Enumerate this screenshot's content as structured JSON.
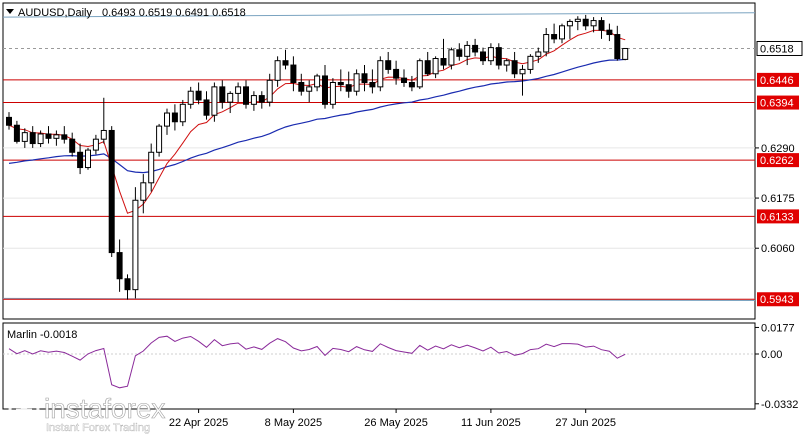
{
  "chart_data": {
    "type": "candlestick",
    "symbol": "AUDUSD,Daily",
    "ohlc_label": "0.6493 0.6519 0.6491 0.6518",
    "current_price": "0.6518",
    "y_ticks": [
      "0.6290",
      "0.6175",
      "0.6060",
      "0.5943"
    ],
    "date_ticks": [
      "22 Apr 2025",
      "8 May 2025",
      "26 May 2025",
      "11 Jun 2025",
      "27 Jun 2025"
    ],
    "ylim": [
      0.59,
      0.662
    ],
    "levels": [
      {
        "label": "0.6446",
        "value": 0.6446
      },
      {
        "label": "0.6394",
        "value": 0.6394
      },
      {
        "label": "0.6262",
        "value": 0.6262
      },
      {
        "label": "0.6133",
        "value": 0.6133
      },
      {
        "label": "0.5943",
        "value": 0.5943
      }
    ],
    "candles": [
      [
        0.636,
        0.6372,
        0.6332,
        0.6342
      ],
      [
        0.6342,
        0.6352,
        0.63,
        0.6305
      ],
      [
        0.6305,
        0.6335,
        0.629,
        0.6325
      ],
      [
        0.6325,
        0.634,
        0.629,
        0.63
      ],
      [
        0.63,
        0.633,
        0.6292,
        0.6322
      ],
      [
        0.6322,
        0.634,
        0.63,
        0.6312
      ],
      [
        0.6312,
        0.633,
        0.6295,
        0.632
      ],
      [
        0.632,
        0.634,
        0.63,
        0.631
      ],
      [
        0.631,
        0.6325,
        0.627,
        0.628
      ],
      [
        0.628,
        0.63,
        0.623,
        0.6245
      ],
      [
        0.6245,
        0.629,
        0.624,
        0.6285
      ],
      [
        0.6285,
        0.632,
        0.6275,
        0.631
      ],
      [
        0.631,
        0.6405,
        0.63,
        0.633
      ],
      [
        0.633,
        0.634,
        0.604,
        0.605
      ],
      [
        0.605,
        0.608,
        0.596,
        0.599
      ],
      [
        0.599,
        0.6,
        0.5942,
        0.5965
      ],
      [
        0.5965,
        0.62,
        0.5945,
        0.617
      ],
      [
        0.617,
        0.623,
        0.614,
        0.621
      ],
      [
        0.621,
        0.63,
        0.619,
        0.628
      ],
      [
        0.628,
        0.6345,
        0.627,
        0.634
      ],
      [
        0.634,
        0.638,
        0.632,
        0.637
      ],
      [
        0.637,
        0.639,
        0.633,
        0.635
      ],
      [
        0.635,
        0.64,
        0.634,
        0.639
      ],
      [
        0.639,
        0.643,
        0.638,
        0.642
      ],
      [
        0.642,
        0.644,
        0.639,
        0.64
      ],
      [
        0.64,
        0.642,
        0.6355,
        0.6365
      ],
      [
        0.6365,
        0.644,
        0.635,
        0.643
      ],
      [
        0.643,
        0.6445,
        0.638,
        0.6395
      ],
      [
        0.6395,
        0.642,
        0.637,
        0.6415
      ],
      [
        0.6415,
        0.644,
        0.6395,
        0.643
      ],
      [
        0.643,
        0.6445,
        0.638,
        0.639
      ],
      [
        0.639,
        0.642,
        0.6375,
        0.641
      ],
      [
        0.641,
        0.642,
        0.638,
        0.6395
      ],
      [
        0.6395,
        0.646,
        0.6385,
        0.6445
      ],
      [
        0.6445,
        0.65,
        0.643,
        0.649
      ],
      [
        0.649,
        0.6515,
        0.647,
        0.648
      ],
      [
        0.648,
        0.65,
        0.642,
        0.644
      ],
      [
        0.644,
        0.646,
        0.641,
        0.642
      ],
      [
        0.642,
        0.6445,
        0.6395,
        0.643
      ],
      [
        0.643,
        0.646,
        0.642,
        0.6455
      ],
      [
        0.6455,
        0.648,
        0.638,
        0.639
      ],
      [
        0.639,
        0.645,
        0.638,
        0.644
      ],
      [
        0.644,
        0.647,
        0.642,
        0.6435
      ],
      [
        0.6435,
        0.6465,
        0.6405,
        0.642
      ],
      [
        0.642,
        0.647,
        0.641,
        0.646
      ],
      [
        0.646,
        0.648,
        0.642,
        0.644
      ],
      [
        0.644,
        0.647,
        0.6415,
        0.643
      ],
      [
        0.643,
        0.65,
        0.642,
        0.649
      ],
      [
        0.649,
        0.651,
        0.646,
        0.647
      ],
      [
        0.647,
        0.649,
        0.6435,
        0.645
      ],
      [
        0.645,
        0.647,
        0.643,
        0.644
      ],
      [
        0.644,
        0.6455,
        0.642,
        0.643
      ],
      [
        0.643,
        0.6495,
        0.6425,
        0.649
      ],
      [
        0.649,
        0.651,
        0.6455,
        0.646
      ],
      [
        0.646,
        0.65,
        0.645,
        0.6495
      ],
      [
        0.6495,
        0.654,
        0.647,
        0.648
      ],
      [
        0.648,
        0.652,
        0.647,
        0.6515
      ],
      [
        0.6515,
        0.653,
        0.649,
        0.65
      ],
      [
        0.65,
        0.6535,
        0.648,
        0.6525
      ],
      [
        0.6525,
        0.654,
        0.65,
        0.651
      ],
      [
        0.651,
        0.652,
        0.648,
        0.649
      ],
      [
        0.649,
        0.653,
        0.648,
        0.652
      ],
      [
        0.652,
        0.653,
        0.647,
        0.648
      ],
      [
        0.648,
        0.6495,
        0.6465,
        0.649
      ],
      [
        0.649,
        0.651,
        0.645,
        0.646
      ],
      [
        0.646,
        0.648,
        0.641,
        0.647
      ],
      [
        0.647,
        0.6505,
        0.646,
        0.65
      ],
      [
        0.65,
        0.652,
        0.6485,
        0.651
      ],
      [
        0.651,
        0.6565,
        0.65,
        0.655
      ],
      [
        0.655,
        0.6575,
        0.653,
        0.654
      ],
      [
        0.654,
        0.6575,
        0.653,
        0.657
      ],
      [
        0.657,
        0.6585,
        0.654,
        0.658
      ],
      [
        0.658,
        0.6592,
        0.656,
        0.6585
      ],
      [
        0.6585,
        0.6595,
        0.656,
        0.657
      ],
      [
        0.657,
        0.659,
        0.6555,
        0.6582
      ],
      [
        0.6582,
        0.659,
        0.654,
        0.656
      ],
      [
        0.656,
        0.6575,
        0.6535,
        0.655
      ],
      [
        0.655,
        0.657,
        0.649,
        0.6495
      ],
      [
        0.6493,
        0.6519,
        0.6491,
        0.6518
      ]
    ],
    "indicator": {
      "label": "Marlin -0.0018",
      "y_ticks": [
        "0.0177",
        "0.00",
        "-0.0332"
      ],
      "ylim": [
        -0.036,
        0.02
      ]
    }
  },
  "watermark": {
    "brand": "instaforex",
    "tagline": "Instant Forex Trading"
  }
}
